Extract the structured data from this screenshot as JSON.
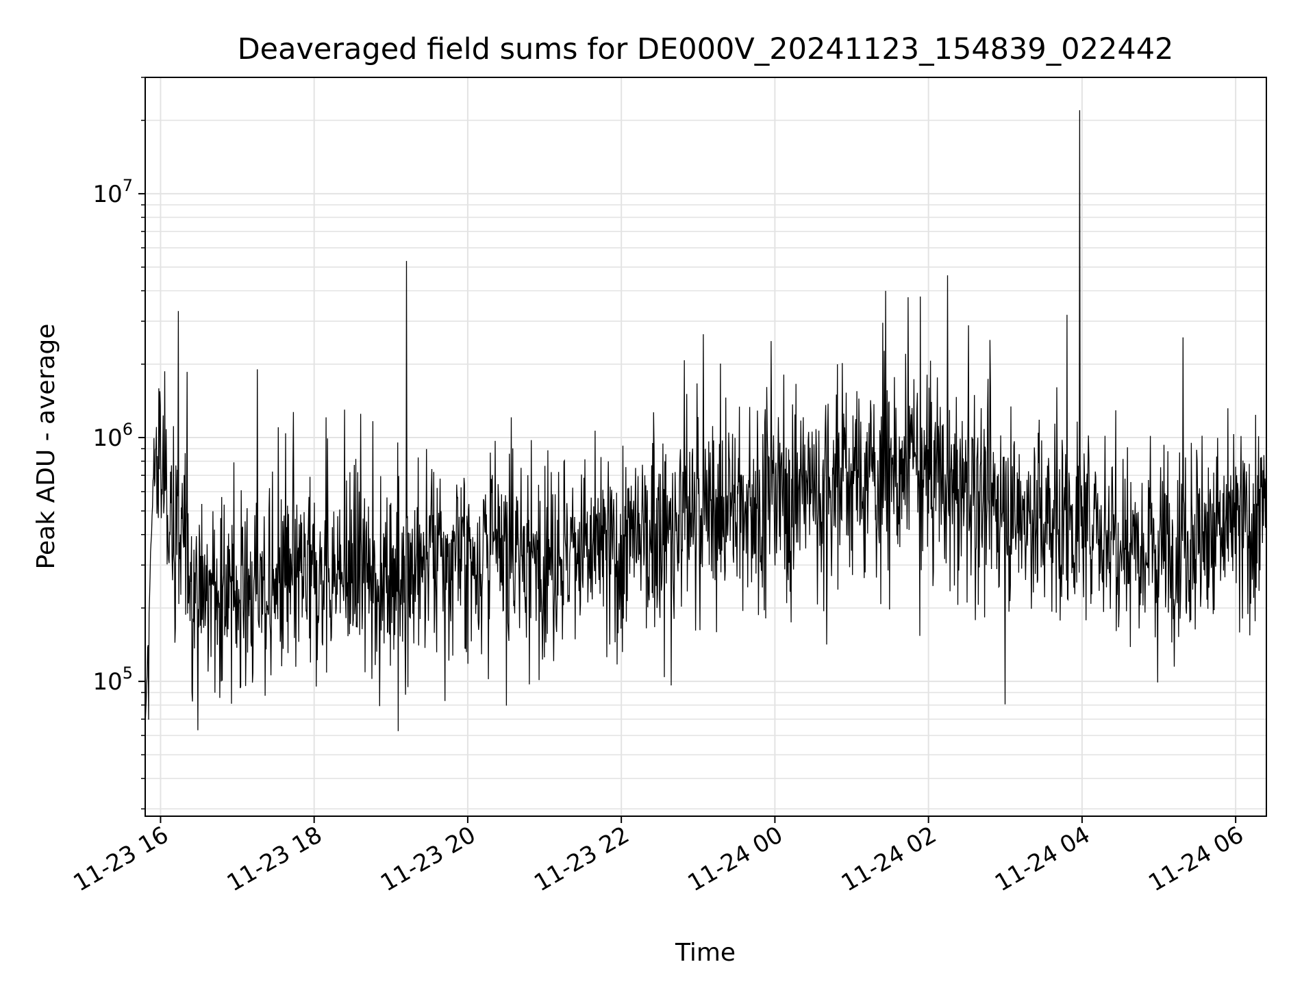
{
  "chart_data": {
    "type": "line",
    "title": "Deaveraged field sums for DE000V_20241123_154839_022442",
    "xlabel": "Time",
    "ylabel": "Peak ADU - average",
    "yscale": "log",
    "ylim": [
      28000,
      30000000
    ],
    "xlim": [
      "2024-11-23 15:48",
      "2024-11-24 06:24"
    ],
    "grid": true,
    "x_ticks": [
      {
        "time": "2024-11-23 16:00",
        "label": "11-23 16"
      },
      {
        "time": "2024-11-23 18:00",
        "label": "11-23 18"
      },
      {
        "time": "2024-11-23 20:00",
        "label": "11-23 20"
      },
      {
        "time": "2024-11-23 22:00",
        "label": "11-23 22"
      },
      {
        "time": "2024-11-24 00:00",
        "label": "11-24 00"
      },
      {
        "time": "2024-11-24 02:00",
        "label": "11-24 02"
      },
      {
        "time": "2024-11-24 04:00",
        "label": "11-24 04"
      },
      {
        "time": "2024-11-24 06:00",
        "label": "11-24 06"
      }
    ],
    "y_ticks": [
      {
        "value": 100000,
        "base": "10",
        "exp": "5"
      },
      {
        "value": 1000000,
        "base": "10",
        "exp": "6"
      },
      {
        "value": 10000000,
        "base": "10",
        "exp": "7"
      }
    ],
    "series": [
      {
        "color": "#000000",
        "spikes": [
          {
            "time": "2024-11-23 19:12",
            "value": 5300000
          },
          {
            "time": "2024-11-24 03:58",
            "value": 22000000
          }
        ],
        "baseline": [
          {
            "time": "2024-11-23 15:48",
            "value": 60000
          },
          {
            "time": "2024-11-23 15:55",
            "value": 900000
          },
          {
            "time": "2024-11-23 16:30",
            "value": 220000
          },
          {
            "time": "2024-11-23 17:00",
            "value": 230000
          },
          {
            "time": "2024-11-23 17:30",
            "value": 240000
          },
          {
            "time": "2024-11-23 18:00",
            "value": 260000
          },
          {
            "time": "2024-11-23 19:00",
            "value": 280000
          },
          {
            "time": "2024-11-23 20:00",
            "value": 330000
          },
          {
            "time": "2024-11-23 21:00",
            "value": 330000
          },
          {
            "time": "2024-11-23 22:00",
            "value": 340000
          },
          {
            "time": "2024-11-23 23:00",
            "value": 480000
          },
          {
            "time": "2024-11-24 00:00",
            "value": 560000
          },
          {
            "time": "2024-11-24 01:00",
            "value": 700000
          },
          {
            "time": "2024-11-24 02:00",
            "value": 720000
          },
          {
            "time": "2024-11-24 03:00",
            "value": 500000
          },
          {
            "time": "2024-11-24 04:00",
            "value": 430000
          },
          {
            "time": "2024-11-24 05:00",
            "value": 380000
          },
          {
            "time": "2024-11-24 06:00",
            "value": 420000
          },
          {
            "time": "2024-11-24 06:24",
            "value": 480000
          }
        ]
      }
    ]
  }
}
